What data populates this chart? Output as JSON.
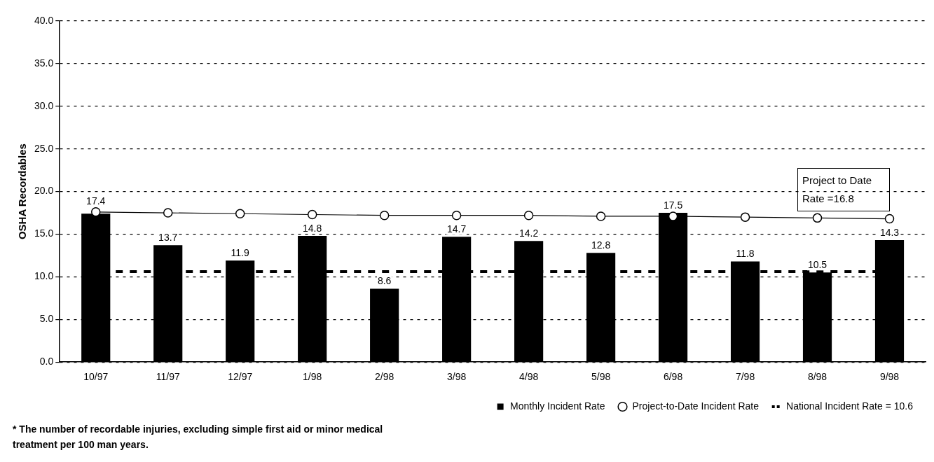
{
  "chart_data": {
    "type": "bar",
    "ylabel": "OSHA Recordables",
    "categories": [
      "10/97",
      "11/97",
      "12/97",
      "1/98",
      "2/98",
      "3/98",
      "4/98",
      "5/98",
      "6/98",
      "7/98",
      "8/98",
      "9/98"
    ],
    "series": [
      {
        "name": "Monthly Incident Rate",
        "color": "#000000",
        "values": [
          17.4,
          13.7,
          11.9,
          14.8,
          8.6,
          14.7,
          14.2,
          12.8,
          17.5,
          11.8,
          10.5,
          14.3
        ],
        "value_labels": [
          "17.4",
          "13.7",
          "11.9",
          "14.8",
          "8.6",
          "14.7",
          "14.2",
          "12.8",
          "17.5",
          "11.8",
          "10.5",
          "14.3"
        ]
      },
      {
        "name": "Project-to-Date Incident Rate",
        "type": "line",
        "color": "#000000",
        "marker": "circle",
        "values": [
          17.6,
          17.5,
          17.4,
          17.3,
          17.2,
          17.2,
          17.2,
          17.1,
          17.1,
          17.0,
          16.9,
          16.8
        ]
      }
    ],
    "ylim": [
      0,
      40
    ],
    "yticks": [
      {
        "value": 0,
        "label": "0.0"
      },
      {
        "value": 5,
        "label": "5.0"
      },
      {
        "value": 10,
        "label": "10.0"
      },
      {
        "value": 15,
        "label": "15.0"
      },
      {
        "value": 20,
        "label": "20.0"
      },
      {
        "value": 25,
        "label": "25.0"
      },
      {
        "value": 30,
        "label": "30.0"
      },
      {
        "value": 35,
        "label": "35.0"
      },
      {
        "value": 40,
        "label": "40.0"
      }
    ],
    "grid": "y",
    "ref_lines": [
      {
        "axis": "y",
        "value": 10.6,
        "label": "National Incident Rate = 10.6",
        "color": "#000000",
        "line_style": "dashed"
      }
    ],
    "legend": "bottom right",
    "annotations": [
      "Project to Date Rate =16.8",
      "* The number of recordable injuries, excluding simple first aid or minor medical treatment per 100 man years."
    ]
  }
}
